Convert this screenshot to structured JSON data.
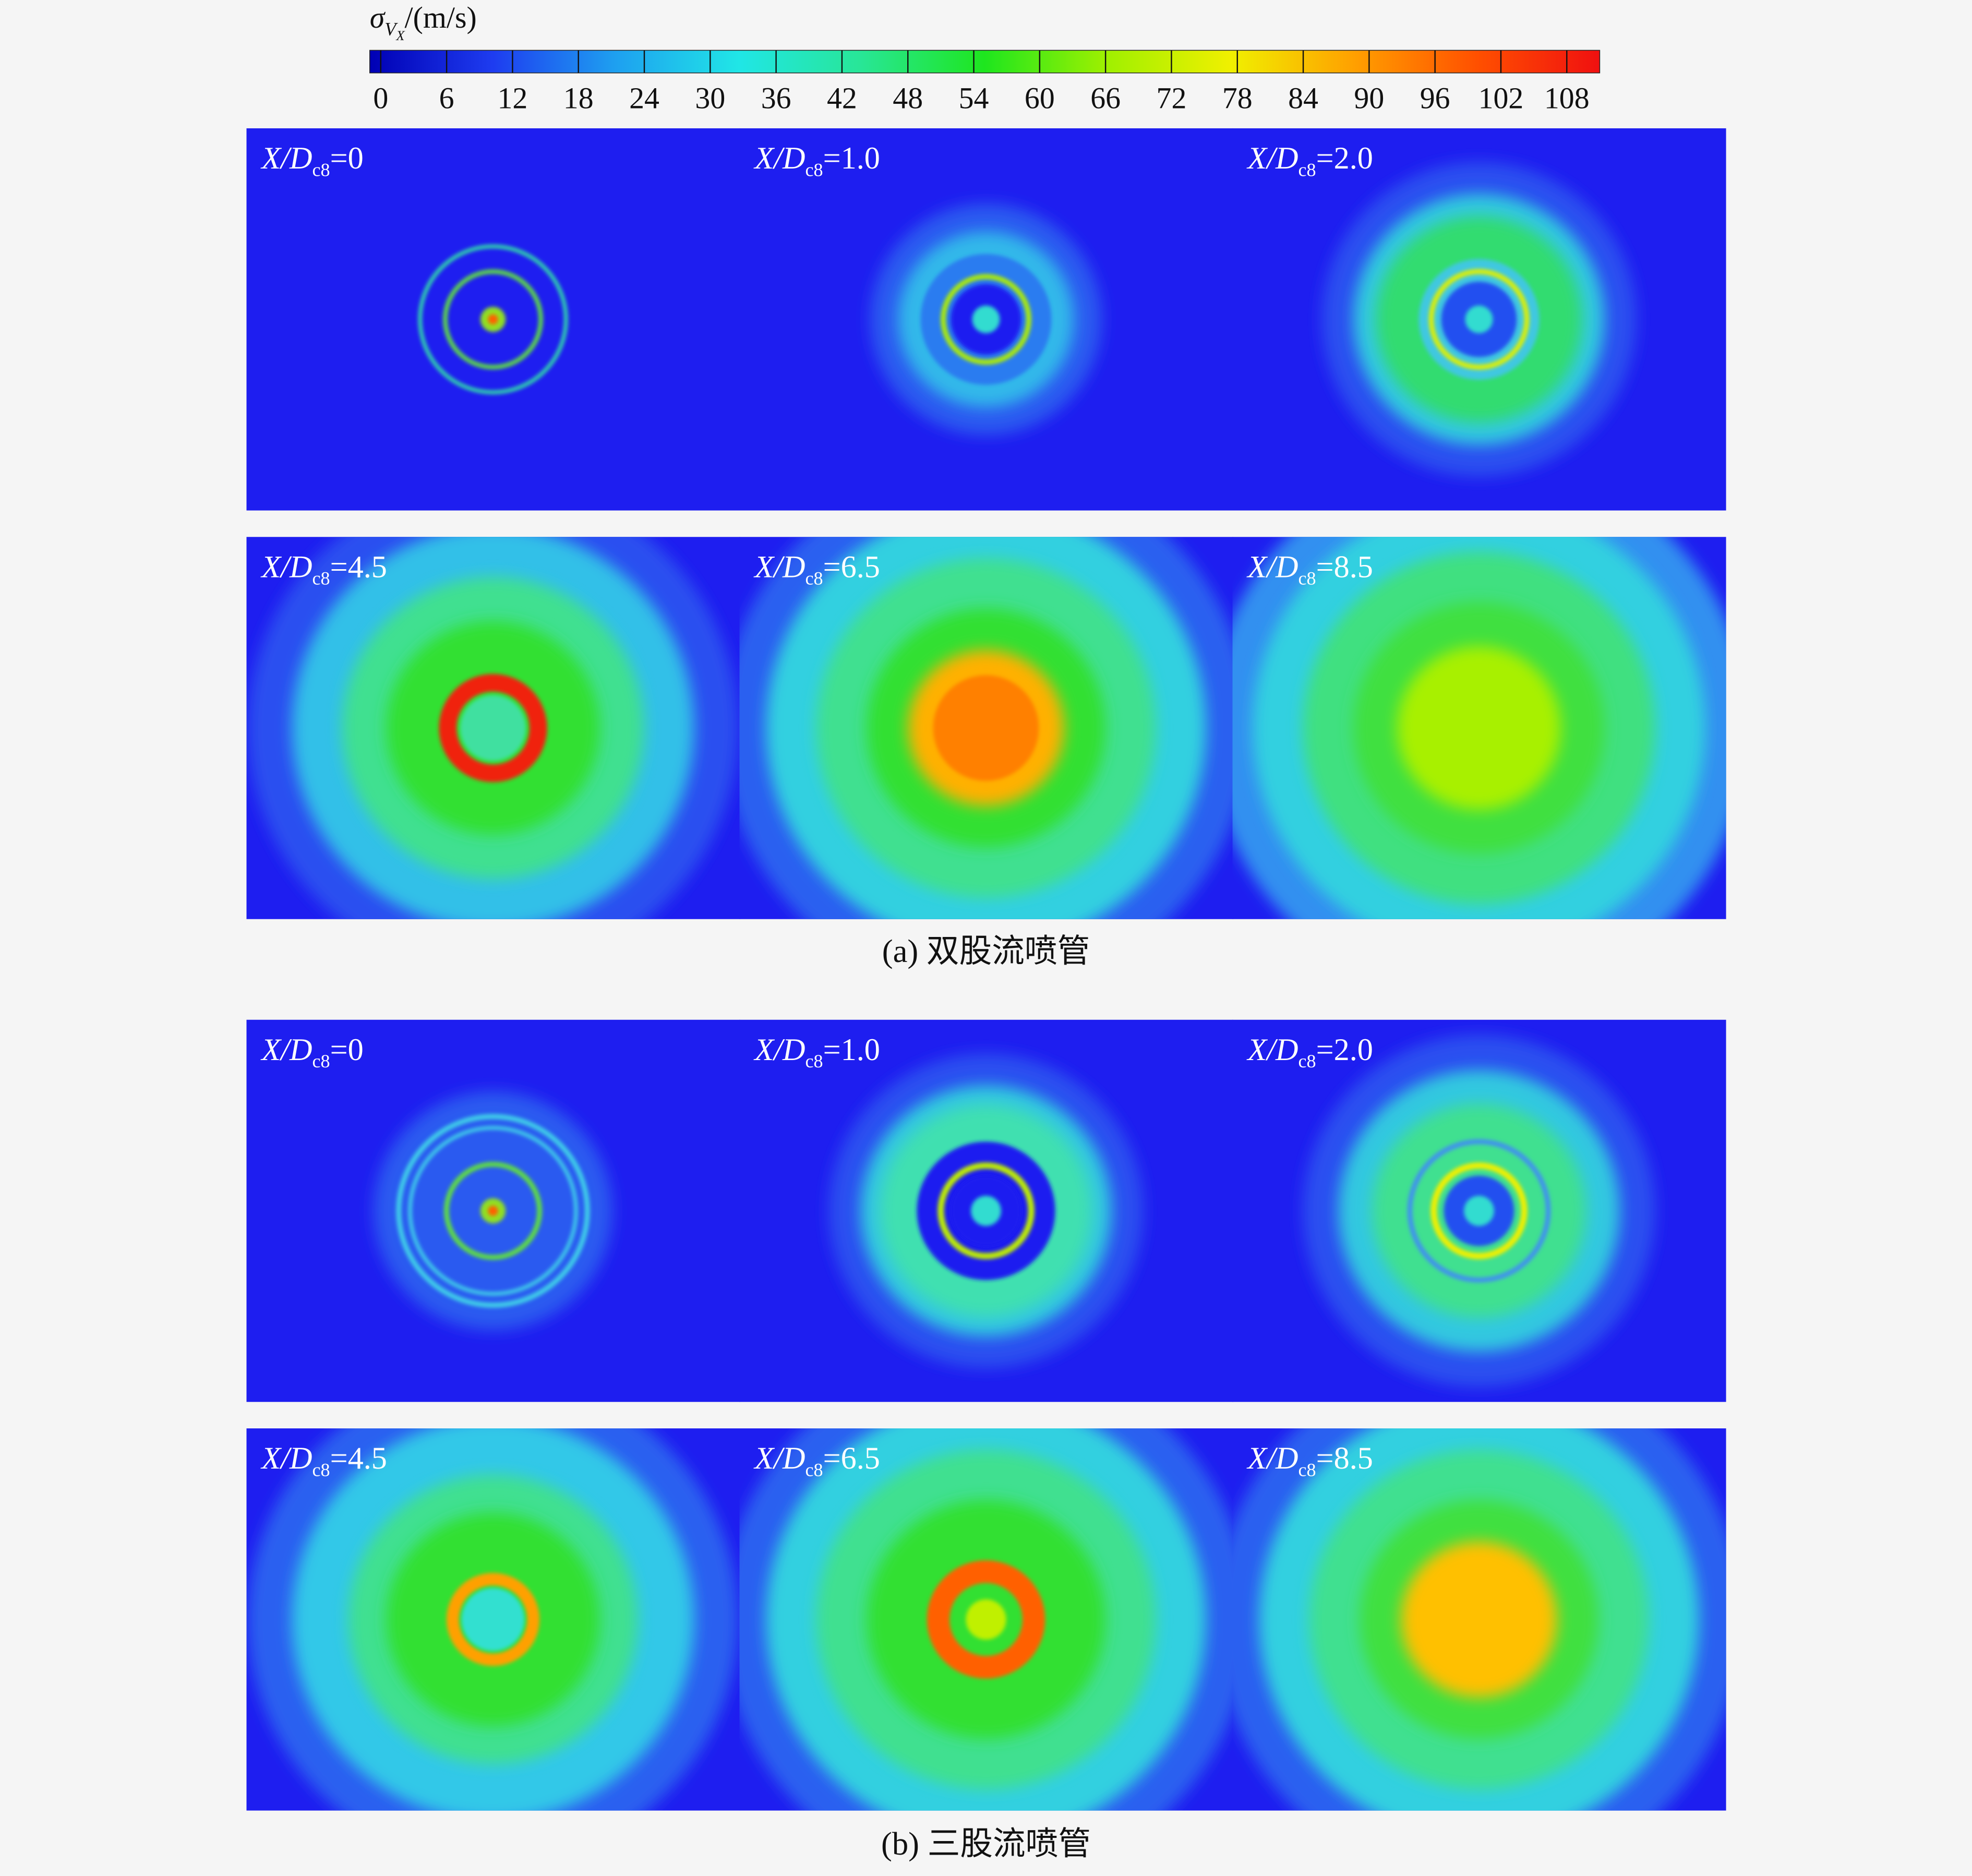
{
  "chart_data": {
    "type": "contour",
    "colorbar": {
      "title": {
        "symbol": "σ",
        "subscript": "V",
        "subsubscript": "X",
        "unit": "/(m/s)"
      },
      "clim": [
        -1,
        111
      ],
      "ticks": [
        0,
        6,
        12,
        18,
        24,
        30,
        36,
        42,
        48,
        54,
        60,
        66,
        72,
        78,
        84,
        90,
        96,
        102,
        108
      ],
      "colors": [
        "#0000b4",
        "#1e3cf0",
        "#1ea0f0",
        "#20e6e6",
        "#28e696",
        "#1ee61e",
        "#a0f000",
        "#f0f000",
        "#ffa000",
        "#ff5000",
        "#f01010"
      ]
    },
    "groups": [
      {
        "caption": "(a) 双股流喷管",
        "panels": [
          {
            "label": {
              "prefix": "X/D",
              "subscript": "c8",
              "suffix": "=0"
            }
          },
          {
            "label": {
              "prefix": "X/D",
              "subscript": "c8",
              "suffix": "=1.0"
            }
          },
          {
            "label": {
              "prefix": "X/D",
              "subscript": "c8",
              "suffix": "=2.0"
            }
          },
          {
            "label": {
              "prefix": "X/D",
              "subscript": "c8",
              "suffix": "=4.5"
            }
          },
          {
            "label": {
              "prefix": "X/D",
              "subscript": "c8",
              "suffix": "=6.5"
            }
          },
          {
            "label": {
              "prefix": "X/D",
              "subscript": "c8",
              "suffix": "=8.5"
            }
          }
        ]
      },
      {
        "caption": "(b) 三股流喷管",
        "panels": [
          {
            "label": {
              "prefix": "X/D",
              "subscript": "c8",
              "suffix": "=0"
            }
          },
          {
            "label": {
              "prefix": "X/D",
              "subscript": "c8",
              "suffix": "=1.0"
            }
          },
          {
            "label": {
              "prefix": "X/D",
              "subscript": "c8",
              "suffix": "=2.0"
            }
          },
          {
            "label": {
              "prefix": "X/D",
              "subscript": "c8",
              "suffix": "=4.5"
            }
          },
          {
            "label": {
              "prefix": "X/D",
              "subscript": "c8",
              "suffix": "=6.5"
            }
          },
          {
            "label": {
              "prefix": "X/D",
              "subscript": "c8",
              "suffix": "=8.5"
            }
          }
        ]
      }
    ]
  }
}
